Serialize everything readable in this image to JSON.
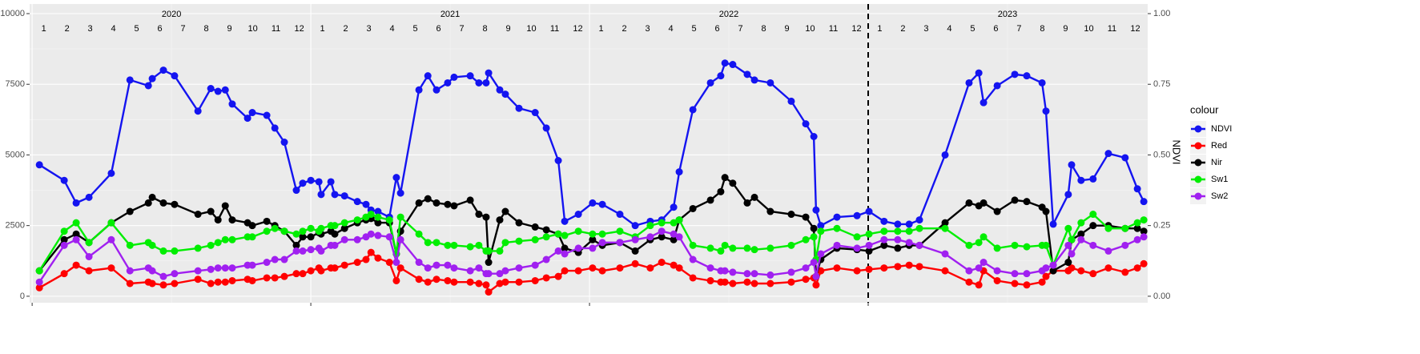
{
  "chart_data": {
    "type": "line",
    "year_labels": [
      "2020",
      "2021",
      "2022",
      "2023"
    ],
    "month_labels": [
      "1",
      "2",
      "3",
      "4",
      "5",
      "6",
      "7",
      "8",
      "9",
      "10",
      "11",
      "12"
    ],
    "y2label": "NDVI",
    "legend_title": "colour",
    "legend": "right",
    "grid": true,
    "vline": 2023,
    "xlim": [
      2019.991,
      2024.003
    ],
    "xticks": [
      2020,
      2021,
      2022,
      2023
    ],
    "ylim": [
      -230,
      10340
    ],
    "yticks": [
      0,
      2500,
      5000,
      7500,
      10000
    ],
    "y2lim": [
      -0.023,
      1.034
    ],
    "y2ticks": [
      {
        "value": 0,
        "label": "0.00"
      },
      {
        "value": 0.25,
        "label": "0.25"
      },
      {
        "value": 0.5,
        "label": "0.50"
      },
      {
        "value": 0.75,
        "label": "0.75"
      },
      {
        "value": 1,
        "label": "1.00"
      }
    ],
    "x": [
      2020.026,
      2020.115,
      2020.158,
      2020.204,
      2020.284,
      2020.351,
      2020.417,
      2020.431,
      2020.471,
      2020.511,
      2020.595,
      2020.641,
      2020.667,
      2020.693,
      2020.718,
      2020.773,
      2020.79,
      2020.842,
      2020.871,
      2020.905,
      2020.948,
      2020.971,
      2021.0,
      2021.029,
      2021.037,
      2021.072,
      2021.086,
      2021.121,
      2021.167,
      2021.198,
      2021.216,
      2021.241,
      2021.282,
      2021.307,
      2021.322,
      2021.388,
      2021.42,
      2021.451,
      2021.491,
      2021.514,
      2021.572,
      2021.603,
      2021.629,
      2021.638,
      2021.678,
      2021.698,
      2021.747,
      2021.805,
      2021.845,
      2021.888,
      2021.911,
      2021.96,
      2022.011,
      2022.046,
      2022.109,
      2022.164,
      2022.218,
      2022.259,
      2022.302,
      2022.322,
      2022.371,
      2022.434,
      2022.471,
      2022.486,
      2022.514,
      2022.566,
      2022.592,
      2022.649,
      2022.724,
      2022.776,
      2022.805,
      2022.813,
      2022.83,
      2022.888,
      2022.96,
      2023.003,
      2023.057,
      2023.106,
      2023.147,
      2023.184,
      2023.276,
      2023.362,
      2023.397,
      2023.414,
      2023.463,
      2023.526,
      2023.569,
      2023.624,
      2023.638,
      2023.664,
      2023.718,
      2023.73,
      2023.764,
      2023.807,
      2023.862,
      2023.922,
      2023.966,
      2023.989
    ],
    "series": [
      {
        "name": "NDVI",
        "color": "#1414f0",
        "axis": "y2",
        "values": [
          0.465,
          0.41,
          0.33,
          0.35,
          0.435,
          0.765,
          0.745,
          0.77,
          0.8,
          0.78,
          0.655,
          0.735,
          0.725,
          0.73,
          0.68,
          0.63,
          0.65,
          0.64,
          0.595,
          0.545,
          0.375,
          0.4,
          0.41,
          0.405,
          0.36,
          0.405,
          0.36,
          0.355,
          0.335,
          0.325,
          0.305,
          0.3,
          0.28,
          0.42,
          0.365,
          0.73,
          0.78,
          0.73,
          0.755,
          0.775,
          0.78,
          0.755,
          0.755,
          0.79,
          0.73,
          0.715,
          0.665,
          0.65,
          0.595,
          0.48,
          0.265,
          0.29,
          0.33,
          0.325,
          0.29,
          0.25,
          0.265,
          0.27,
          0.315,
          0.44,
          0.66,
          0.755,
          0.78,
          0.825,
          0.82,
          0.785,
          0.765,
          0.755,
          0.69,
          0.61,
          0.565,
          0.305,
          0.25,
          0.28,
          0.285,
          0.3,
          0.265,
          0.255,
          0.255,
          0.27,
          0.5,
          0.755,
          0.79,
          0.685,
          0.745,
          0.785,
          0.78,
          0.755,
          0.655,
          0.255,
          0.36,
          0.465,
          0.41,
          0.415,
          0.505,
          0.49,
          0.38,
          0.335
        ]
      },
      {
        "name": "Red",
        "color": "#ff0000",
        "values": [
          300,
          800,
          1100,
          900,
          1000,
          450,
          500,
          450,
          400,
          450,
          600,
          450,
          500,
          500,
          550,
          600,
          550,
          650,
          650,
          700,
          800,
          800,
          900,
          1000,
          900,
          1000,
          1000,
          1100,
          1200,
          1300,
          1550,
          1350,
          1200,
          550,
          1000,
          600,
          500,
          600,
          550,
          500,
          500,
          450,
          400,
          150,
          450,
          500,
          500,
          550,
          650,
          700,
          900,
          900,
          1000,
          900,
          1000,
          1150,
          1000,
          1200,
          1100,
          1000,
          650,
          550,
          500,
          500,
          450,
          500,
          450,
          450,
          500,
          600,
          650,
          400,
          900,
          1000,
          900,
          950,
          1000,
          1050,
          1100,
          1050,
          900,
          500,
          400,
          900,
          550,
          450,
          400,
          500,
          700,
          900,
          900,
          1000,
          900,
          800,
          1000,
          850,
          1000,
          1150
        ]
      },
      {
        "name": "Nir",
        "color": "#000000",
        "values": [
          900,
          2000,
          2200,
          1900,
          2600,
          3000,
          3300,
          3500,
          3300,
          3250,
          2900,
          3000,
          2700,
          3200,
          2700,
          2600,
          2500,
          2650,
          2500,
          2300,
          1800,
          2100,
          2100,
          2250,
          2200,
          2300,
          2200,
          2400,
          2600,
          2700,
          2750,
          2600,
          2600,
          1500,
          2300,
          3300,
          3450,
          3300,
          3250,
          3200,
          3400,
          2900,
          2800,
          1200,
          2700,
          3000,
          2600,
          2450,
          2350,
          2200,
          1700,
          1550,
          2000,
          1800,
          1900,
          1600,
          2000,
          2100,
          2000,
          2700,
          3100,
          3400,
          3700,
          4200,
          4000,
          3300,
          3500,
          3000,
          2900,
          2800,
          2400,
          700,
          1300,
          1700,
          1650,
          1600,
          1800,
          1700,
          1800,
          1800,
          2600,
          3300,
          3200,
          3300,
          3000,
          3400,
          3350,
          3150,
          3000,
          900,
          1200,
          2000,
          2200,
          2500,
          2500,
          2400,
          2400,
          2300
        ]
      },
      {
        "name": "Sw1",
        "color": "#00ee00",
        "values": [
          900,
          2300,
          2600,
          1900,
          2600,
          1800,
          1900,
          1800,
          1600,
          1600,
          1700,
          1800,
          1900,
          2000,
          2000,
          2100,
          2100,
          2300,
          2400,
          2300,
          2200,
          2300,
          2400,
          2300,
          2400,
          2500,
          2500,
          2600,
          2700,
          2800,
          2900,
          2800,
          2700,
          1500,
          2800,
          2200,
          1900,
          1900,
          1800,
          1800,
          1750,
          1800,
          1600,
          1600,
          1600,
          1900,
          1950,
          2000,
          2100,
          2200,
          2150,
          2300,
          2200,
          2200,
          2300,
          2100,
          2500,
          2600,
          2600,
          2700,
          1800,
          1700,
          1600,
          1800,
          1700,
          1700,
          1650,
          1700,
          1800,
          2000,
          2100,
          1300,
          2300,
          2400,
          2100,
          2200,
          2300,
          2300,
          2300,
          2400,
          2400,
          1800,
          1900,
          2100,
          1700,
          1800,
          1750,
          1800,
          1800,
          1100,
          2400,
          2000,
          2600,
          2900,
          2400,
          2400,
          2600,
          2700
        ]
      },
      {
        "name": "Sw2",
        "color": "#a020f0",
        "values": [
          500,
          1800,
          2000,
          1400,
          2000,
          900,
          1000,
          900,
          700,
          800,
          900,
          950,
          1000,
          1000,
          1000,
          1100,
          1100,
          1200,
          1300,
          1300,
          1600,
          1600,
          1650,
          1700,
          1600,
          1800,
          1800,
          2000,
          2000,
          2100,
          2200,
          2150,
          2100,
          1200,
          2000,
          1200,
          1000,
          1100,
          1100,
          1000,
          900,
          1000,
          800,
          800,
          800,
          900,
          1000,
          1100,
          1300,
          1600,
          1500,
          1700,
          1700,
          1900,
          1900,
          2000,
          2100,
          2300,
          2200,
          2100,
          1300,
          1000,
          900,
          900,
          850,
          800,
          800,
          750,
          850,
          1000,
          1200,
          700,
          1500,
          1800,
          1700,
          1800,
          2000,
          2000,
          1900,
          1800,
          1500,
          900,
          1000,
          1200,
          900,
          800,
          800,
          900,
          1000,
          1100,
          1800,
          1500,
          2000,
          1800,
          1600,
          1800,
          2000,
          2100
        ]
      }
    ]
  }
}
